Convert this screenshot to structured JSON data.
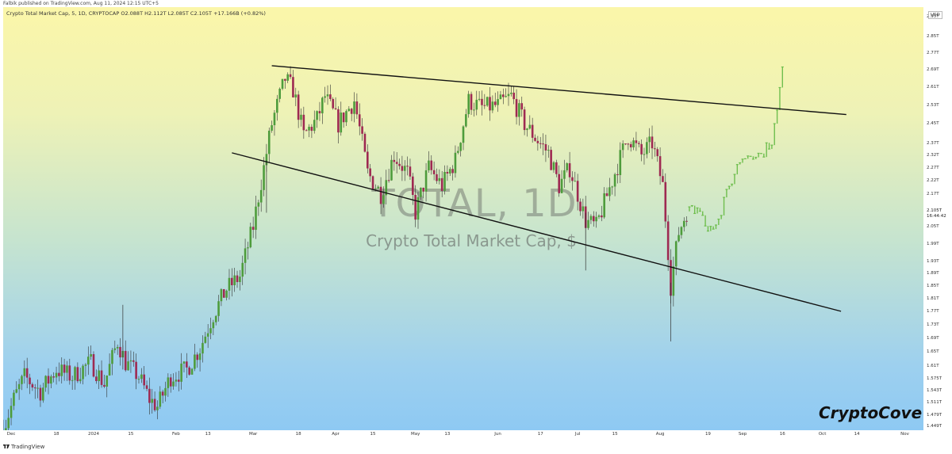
{
  "header": {
    "published_text": "Falbik published on TradingView.com, Aug 11, 2024 12:15 UTC+5"
  },
  "legend": {
    "text": "Crypto Total Market Cap, 5, 1D, CRYPTOCAP  O2.088T  H2.112T  L2.085T  C2.105T  +17.166B (+0.82%)"
  },
  "watermark": {
    "symbol": "TOTAL, 1D",
    "name": "Crypto Total Market Cap, $"
  },
  "brand": "CryptoCove",
  "footer": {
    "text": "TradingView"
  },
  "yaxis": {
    "currency": "USD",
    "ticks": [
      "2.95T",
      "2.85T",
      "2.77T",
      "2.69T",
      "2.61T",
      "2.53T",
      "2.45T",
      "2.37T",
      "2.32T",
      "2.27T",
      "2.22T",
      "2.17T",
      "2.05T",
      "1.99T",
      "1.93T",
      "1.89T",
      "1.85T",
      "1.81T",
      "1.77T",
      "1.73T",
      "1.69T",
      "1.65T",
      "1.61T",
      "1.575T",
      "1.543T",
      "1.511T",
      "1.479T",
      "1.449T"
    ],
    "current_price": "2.105T",
    "countdown": "16:44:42"
  },
  "xaxis": {
    "ticks": [
      "Dec",
      "18",
      "2024",
      "15",
      "Feb",
      "13",
      "Mar",
      "18",
      "Apr",
      "15",
      "May",
      "13",
      "Jun",
      "17",
      "Jul",
      "15",
      "Aug",
      "19",
      "Sep",
      "16",
      "Oct",
      "14",
      "Nov"
    ]
  },
  "colors": {
    "up": "#4e9c3c",
    "down": "#9e2a52",
    "projection": "#6fbe4e",
    "trendline": "#111111"
  },
  "chart_data": {
    "type": "candlestick",
    "title": "Crypto Total Market Cap",
    "interval": "1D",
    "ylabel": "USD",
    "ylim": [
      1.44,
      3.0
    ],
    "y_scale": "log",
    "xlim": [
      "2023-11-28",
      "2024-11-08"
    ],
    "last_candle": {
      "open": 2.088,
      "high": 2.112,
      "low": 2.085,
      "close": 2.105,
      "change": "+17.166B (+0.82%)"
    },
    "anchors": [
      [
        "2023-11-28",
        1.44
      ],
      [
        "2023-12-02",
        1.52
      ],
      [
        "2023-12-06",
        1.58
      ],
      [
        "2023-12-12",
        1.54
      ],
      [
        "2023-12-18",
        1.6
      ],
      [
        "2023-12-24",
        1.58
      ],
      [
        "2023-12-31",
        1.62
      ],
      [
        "2024-01-05",
        1.56
      ],
      [
        "2024-01-10",
        1.68
      ],
      [
        "2024-01-13",
        1.62
      ],
      [
        "2024-01-18",
        1.58
      ],
      [
        "2024-01-22",
        1.52
      ],
      [
        "2024-01-25",
        1.5
      ],
      [
        "2024-01-30",
        1.58
      ],
      [
        "2024-02-05",
        1.6
      ],
      [
        "2024-02-10",
        1.66
      ],
      [
        "2024-02-15",
        1.76
      ],
      [
        "2024-02-20",
        1.84
      ],
      [
        "2024-02-25",
        1.88
      ],
      [
        "2024-03-01",
        2.05
      ],
      [
        "2024-03-05",
        2.27
      ],
      [
        "2024-03-08",
        2.45
      ],
      [
        "2024-03-13",
        2.65
      ],
      [
        "2024-03-16",
        2.6
      ],
      [
        "2024-03-20",
        2.4
      ],
      [
        "2024-03-25",
        2.47
      ],
      [
        "2024-03-28",
        2.57
      ],
      [
        "2024-04-02",
        2.45
      ],
      [
        "2024-04-08",
        2.55
      ],
      [
        "2024-04-13",
        2.25
      ],
      [
        "2024-04-18",
        2.17
      ],
      [
        "2024-04-23",
        2.32
      ],
      [
        "2024-04-28",
        2.25
      ],
      [
        "2024-05-01",
        2.1
      ],
      [
        "2024-05-06",
        2.27
      ],
      [
        "2024-05-11",
        2.2
      ],
      [
        "2024-05-16",
        2.3
      ],
      [
        "2024-05-21",
        2.55
      ],
      [
        "2024-05-26",
        2.52
      ],
      [
        "2024-06-01",
        2.53
      ],
      [
        "2024-06-06",
        2.57
      ],
      [
        "2024-06-11",
        2.45
      ],
      [
        "2024-06-16",
        2.38
      ],
      [
        "2024-06-20",
        2.33
      ],
      [
        "2024-06-24",
        2.2
      ],
      [
        "2024-06-28",
        2.27
      ],
      [
        "2024-07-04",
        2.07
      ],
      [
        "2024-07-08",
        2.05
      ],
      [
        "2024-07-14",
        2.22
      ],
      [
        "2024-07-20",
        2.4
      ],
      [
        "2024-07-25",
        2.32
      ],
      [
        "2024-07-29",
        2.37
      ],
      [
        "2024-08-02",
        2.2
      ],
      [
        "2024-08-05",
        1.85
      ],
      [
        "2024-08-08",
        2.03
      ],
      [
        "2024-08-11",
        2.105
      ]
    ],
    "projection_anchors": [
      [
        "2024-08-11",
        2.105
      ],
      [
        "2024-08-15",
        2.12
      ],
      [
        "2024-08-19",
        2.05
      ],
      [
        "2024-08-23",
        2.07
      ],
      [
        "2024-08-26",
        2.17
      ],
      [
        "2024-08-31",
        2.3
      ],
      [
        "2024-09-04",
        2.33
      ],
      [
        "2024-09-08",
        2.32
      ],
      [
        "2024-09-12",
        2.38
      ],
      [
        "2024-09-14",
        2.5
      ],
      [
        "2024-09-16",
        2.7
      ]
    ],
    "trendlines": [
      {
        "name": "upper",
        "from": [
          "2024-03-08",
          2.71
        ],
        "to": [
          "2024-10-10",
          2.49
        ]
      },
      {
        "name": "lower",
        "from": [
          "2024-02-22",
          2.33
        ],
        "to": [
          "2024-10-08",
          1.77
        ]
      }
    ]
  }
}
